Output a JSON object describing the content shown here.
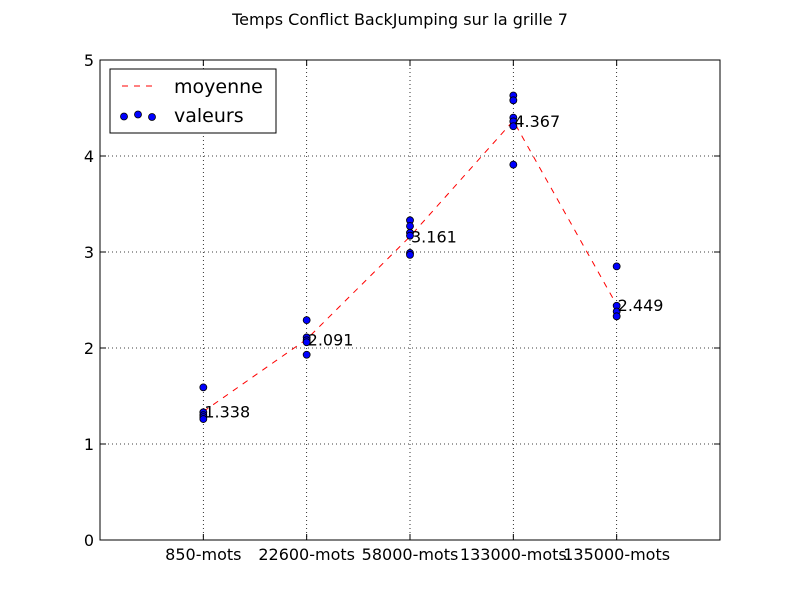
{
  "chart_data": {
    "type": "scatter",
    "title": "Temps Conflict BackJumping sur la grille 7",
    "xlabel": "",
    "ylabel": "",
    "categories": [
      "850-mots",
      "22600-mots",
      "58000-mots",
      "133000-mots",
      "135000-mots"
    ],
    "ylim": [
      0,
      5
    ],
    "yticks": [
      "0",
      "1",
      "2",
      "3",
      "4",
      "5"
    ],
    "grid": true,
    "legend_position": "top-left",
    "series": [
      {
        "name": "moyenne",
        "style": "dashed-line",
        "color": "#ff0000",
        "values": [
          1.338,
          2.091,
          3.161,
          4.367,
          2.449
        ]
      },
      {
        "name": "valeurs",
        "style": "markers",
        "color": "#0000ff",
        "points": [
          [
            1.59,
            1.33,
            1.3,
            1.28,
            1.26
          ],
          [
            2.29,
            2.11,
            2.08,
            2.06,
            1.93
          ],
          [
            3.33,
            3.27,
            3.2,
            3.17,
            2.99,
            2.97
          ],
          [
            4.63,
            4.58,
            4.4,
            4.36,
            4.31,
            3.91
          ],
          [
            2.85,
            2.44,
            2.38,
            2.33
          ]
        ]
      }
    ],
    "annotations": [
      "1.338",
      "2.091",
      "3.161",
      "4.367",
      "2.449"
    ]
  },
  "colors": {
    "mean_line": "#ff0000",
    "marker_fill": "#0000ff",
    "grid": "#000000"
  }
}
